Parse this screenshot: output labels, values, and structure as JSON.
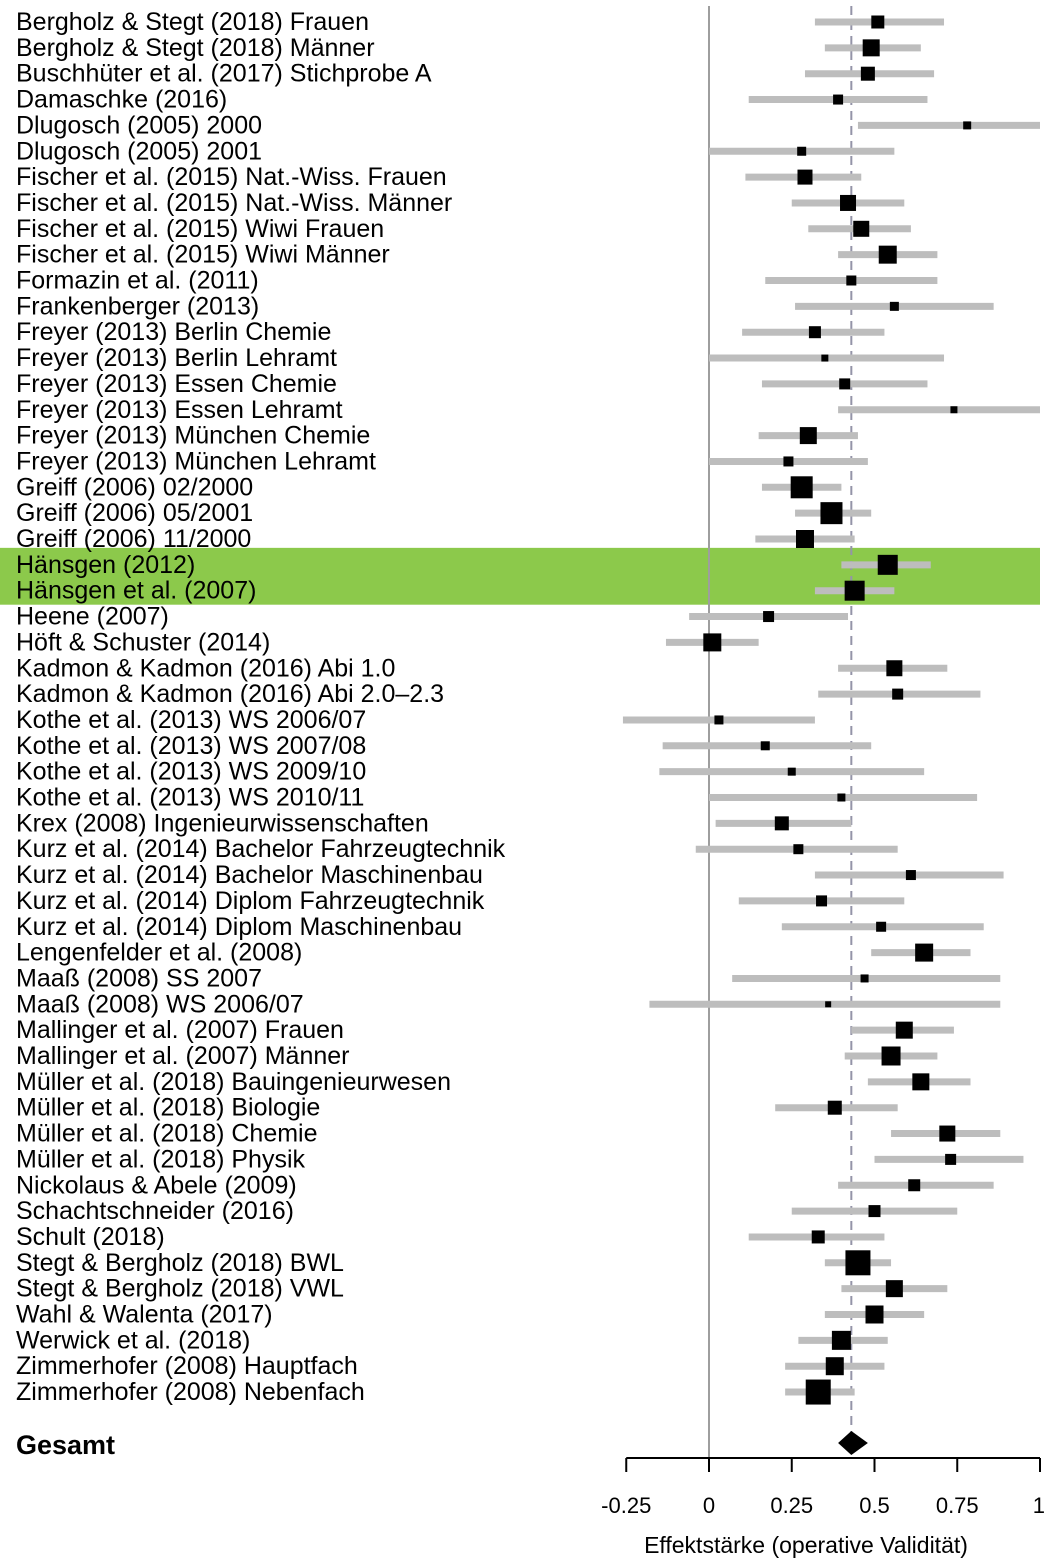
{
  "chart_data": {
    "type": "forest",
    "xlabel": "Effektstärke (operative Validität)",
    "xlim": [
      -0.25,
      1.0
    ],
    "xticks": [
      -0.25,
      0,
      0.25,
      0.5,
      0.75,
      1.0
    ],
    "xtick_labels": [
      "-0.25",
      "0",
      "0.25",
      "0.5",
      "0.75",
      "1"
    ],
    "reference_line": 0,
    "summary_line": 0.43,
    "summary": {
      "label": "Gesamt",
      "estimate": 0.43,
      "lower": 0.39,
      "upper": 0.48
    },
    "colors": {
      "ci": "#bdbdbd",
      "marker": "#000000",
      "highlight": "#8cc94b",
      "reference": "#9e9e9e",
      "summary_line": "#9494a8"
    },
    "highlighted_studies": [
      "Hänsgen (2012)",
      "Hänsgen et al. (2007)"
    ],
    "studies": [
      {
        "label": "Bergholz & Stegt (2018) Frauen",
        "estimate": 0.51,
        "lower": 0.32,
        "upper": 0.71,
        "weight": 13
      },
      {
        "label": "Bergholz & Stegt (2018) Männer",
        "estimate": 0.49,
        "lower": 0.35,
        "upper": 0.64,
        "weight": 17
      },
      {
        "label": "Buschhüter et al. (2017) Stichprobe A",
        "estimate": 0.48,
        "lower": 0.29,
        "upper": 0.68,
        "weight": 14
      },
      {
        "label": "Damaschke (2016)",
        "estimate": 0.39,
        "lower": 0.12,
        "upper": 0.66,
        "weight": 10
      },
      {
        "label": "Dlugosch (2005) 2000",
        "estimate": 0.78,
        "lower": 0.45,
        "upper": 1.01,
        "weight": 8
      },
      {
        "label": "Dlugosch (2005) 2001",
        "estimate": 0.28,
        "lower": 0.0,
        "upper": 0.56,
        "weight": 9
      },
      {
        "label": "Fischer et al. (2015) Nat.-Wiss. Frauen",
        "estimate": 0.29,
        "lower": 0.11,
        "upper": 0.46,
        "weight": 15
      },
      {
        "label": "Fischer et al. (2015) Nat.-Wiss. Männer",
        "estimate": 0.42,
        "lower": 0.25,
        "upper": 0.59,
        "weight": 16
      },
      {
        "label": "Fischer et al. (2015) Wiwi Frauen",
        "estimate": 0.46,
        "lower": 0.3,
        "upper": 0.61,
        "weight": 16
      },
      {
        "label": "Fischer et al. (2015) Wiwi Männer",
        "estimate": 0.54,
        "lower": 0.39,
        "upper": 0.69,
        "weight": 18
      },
      {
        "label": "Formazin et al. (2011)",
        "estimate": 0.43,
        "lower": 0.17,
        "upper": 0.69,
        "weight": 10
      },
      {
        "label": "Frankenberger (2013)",
        "estimate": 0.56,
        "lower": 0.26,
        "upper": 0.86,
        "weight": 9
      },
      {
        "label": "Freyer (2013) Berlin Chemie",
        "estimate": 0.32,
        "lower": 0.1,
        "upper": 0.53,
        "weight": 12
      },
      {
        "label": "Freyer (2013) Berlin Lehramt",
        "estimate": 0.35,
        "lower": 0.0,
        "upper": 0.71,
        "weight": 7
      },
      {
        "label": "Freyer (2013) Essen Chemie",
        "estimate": 0.41,
        "lower": 0.16,
        "upper": 0.66,
        "weight": 11
      },
      {
        "label": "Freyer (2013) Essen Lehramt",
        "estimate": 0.74,
        "lower": 0.39,
        "upper": 1.01,
        "weight": 7
      },
      {
        "label": "Freyer (2013) München Chemie",
        "estimate": 0.3,
        "lower": 0.15,
        "upper": 0.45,
        "weight": 17
      },
      {
        "label": "Freyer (2013) München Lehramt",
        "estimate": 0.24,
        "lower": 0.0,
        "upper": 0.48,
        "weight": 10
      },
      {
        "label": "Greiff (2006) 02/2000",
        "estimate": 0.28,
        "lower": 0.16,
        "upper": 0.4,
        "weight": 22
      },
      {
        "label": "Greiff (2006) 05/2001",
        "estimate": 0.37,
        "lower": 0.26,
        "upper": 0.49,
        "weight": 22
      },
      {
        "label": "Greiff (2006) 11/2000",
        "estimate": 0.29,
        "lower": 0.14,
        "upper": 0.44,
        "weight": 18
      },
      {
        "label": "Hänsgen (2012)",
        "estimate": 0.54,
        "lower": 0.4,
        "upper": 0.67,
        "weight": 20
      },
      {
        "label": "Hänsgen et al. (2007)",
        "estimate": 0.44,
        "lower": 0.32,
        "upper": 0.56,
        "weight": 20
      },
      {
        "label": "Heene (2007)",
        "estimate": 0.18,
        "lower": -0.06,
        "upper": 0.42,
        "weight": 11
      },
      {
        "label": "Höft & Schuster (2014)",
        "estimate": 0.01,
        "lower": -0.13,
        "upper": 0.15,
        "weight": 18
      },
      {
        "label": "Kadmon & Kadmon (2016) Abi 1.0",
        "estimate": 0.56,
        "lower": 0.39,
        "upper": 0.72,
        "weight": 16
      },
      {
        "label": "Kadmon & Kadmon (2016) Abi 2.0–2.3",
        "estimate": 0.57,
        "lower": 0.33,
        "upper": 0.82,
        "weight": 11
      },
      {
        "label": "Kothe et al. (2013) WS 2006/07",
        "estimate": 0.03,
        "lower": -0.26,
        "upper": 0.32,
        "weight": 9
      },
      {
        "label": "Kothe et al. (2013) WS 2007/08",
        "estimate": 0.17,
        "lower": -0.14,
        "upper": 0.49,
        "weight": 9
      },
      {
        "label": "Kothe et al. (2013) WS 2009/10",
        "estimate": 0.25,
        "lower": -0.15,
        "upper": 0.65,
        "weight": 8
      },
      {
        "label": "Kothe et al. (2013) WS 2010/11",
        "estimate": 0.4,
        "lower": 0.0,
        "upper": 0.81,
        "weight": 8
      },
      {
        "label": "Krex (2008) Ingenieurwissenschaften",
        "estimate": 0.22,
        "lower": 0.02,
        "upper": 0.43,
        "weight": 14
      },
      {
        "label": "Kurz et al. (2014) Bachelor Fahrzeugtechnik",
        "estimate": 0.27,
        "lower": -0.04,
        "upper": 0.57,
        "weight": 10
      },
      {
        "label": "Kurz et al. (2014) Bachelor Maschinenbau",
        "estimate": 0.61,
        "lower": 0.32,
        "upper": 0.89,
        "weight": 10
      },
      {
        "label": "Kurz et al. (2014) Diplom Fahrzeugtechnik",
        "estimate": 0.34,
        "lower": 0.09,
        "upper": 0.59,
        "weight": 11
      },
      {
        "label": "Kurz et al. (2014) Diplom Maschinenbau",
        "estimate": 0.52,
        "lower": 0.22,
        "upper": 0.83,
        "weight": 10
      },
      {
        "label": "Lengenfelder et al. (2008)",
        "estimate": 0.65,
        "lower": 0.49,
        "upper": 0.79,
        "weight": 18
      },
      {
        "label": "Maaß (2008) SS 2007",
        "estimate": 0.47,
        "lower": 0.07,
        "upper": 0.88,
        "weight": 8
      },
      {
        "label": "Maaß (2008) WS 2006/07",
        "estimate": 0.36,
        "lower": -0.18,
        "upper": 0.88,
        "weight": 6
      },
      {
        "label": "Mallinger et al. (2007) Frauen",
        "estimate": 0.59,
        "lower": 0.43,
        "upper": 0.74,
        "weight": 17
      },
      {
        "label": "Mallinger et al. (2007) Männer",
        "estimate": 0.55,
        "lower": 0.41,
        "upper": 0.69,
        "weight": 19
      },
      {
        "label": "Müller et al. (2018) Bauingenieurwesen",
        "estimate": 0.64,
        "lower": 0.48,
        "upper": 0.79,
        "weight": 17
      },
      {
        "label": "Müller et al. (2018) Biologie",
        "estimate": 0.38,
        "lower": 0.2,
        "upper": 0.57,
        "weight": 14
      },
      {
        "label": "Müller et al. (2018) Chemie",
        "estimate": 0.72,
        "lower": 0.55,
        "upper": 0.88,
        "weight": 16
      },
      {
        "label": "Müller et al. (2018) Physik",
        "estimate": 0.73,
        "lower": 0.5,
        "upper": 0.95,
        "weight": 11
      },
      {
        "label": "Nickolaus & Abele (2009)",
        "estimate": 0.62,
        "lower": 0.39,
        "upper": 0.86,
        "weight": 12
      },
      {
        "label": "Schachtschneider (2016)",
        "estimate": 0.5,
        "lower": 0.25,
        "upper": 0.75,
        "weight": 12
      },
      {
        "label": "Schult (2018)",
        "estimate": 0.33,
        "lower": 0.12,
        "upper": 0.53,
        "weight": 13
      },
      {
        "label": "Stegt & Bergholz (2018) BWL",
        "estimate": 0.45,
        "lower": 0.35,
        "upper": 0.55,
        "weight": 25
      },
      {
        "label": "Stegt & Bergholz (2018) VWL",
        "estimate": 0.56,
        "lower": 0.4,
        "upper": 0.72,
        "weight": 17
      },
      {
        "label": "Wahl & Walenta (2017)",
        "estimate": 0.5,
        "lower": 0.35,
        "upper": 0.65,
        "weight": 18
      },
      {
        "label": "Werwick et al. (2018)",
        "estimate": 0.4,
        "lower": 0.27,
        "upper": 0.54,
        "weight": 19
      },
      {
        "label": "Zimmerhofer (2008) Hauptfach",
        "estimate": 0.38,
        "lower": 0.23,
        "upper": 0.53,
        "weight": 18
      },
      {
        "label": "Zimmerhofer (2008) Nebenfach",
        "estimate": 0.33,
        "lower": 0.23,
        "upper": 0.44,
        "weight": 25
      }
    ]
  }
}
